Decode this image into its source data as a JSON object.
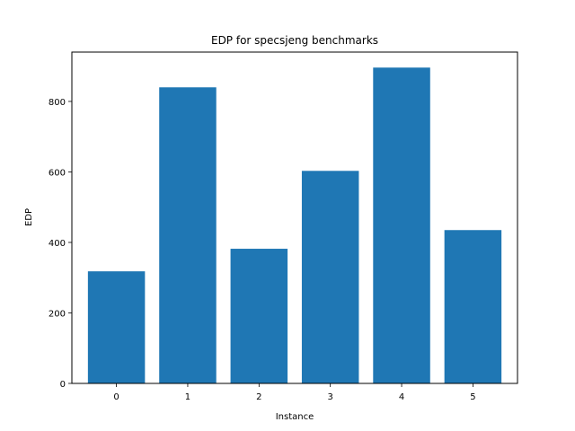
{
  "chart_data": {
    "type": "bar",
    "title": "EDP for specsjeng benchmarks",
    "xlabel": "Instance",
    "ylabel": "EDP",
    "categories": [
      "0",
      "1",
      "2",
      "3",
      "4",
      "5"
    ],
    "values": [
      318,
      840,
      382,
      603,
      896,
      435
    ],
    "ylim": [
      0,
      940
    ],
    "yticks": [
      0,
      200,
      400,
      600,
      800
    ],
    "ytick_labels": [
      "0",
      "200",
      "400",
      "600",
      "800"
    ],
    "bar_color": "#1f77b4",
    "grid": false,
    "legend": false
  }
}
